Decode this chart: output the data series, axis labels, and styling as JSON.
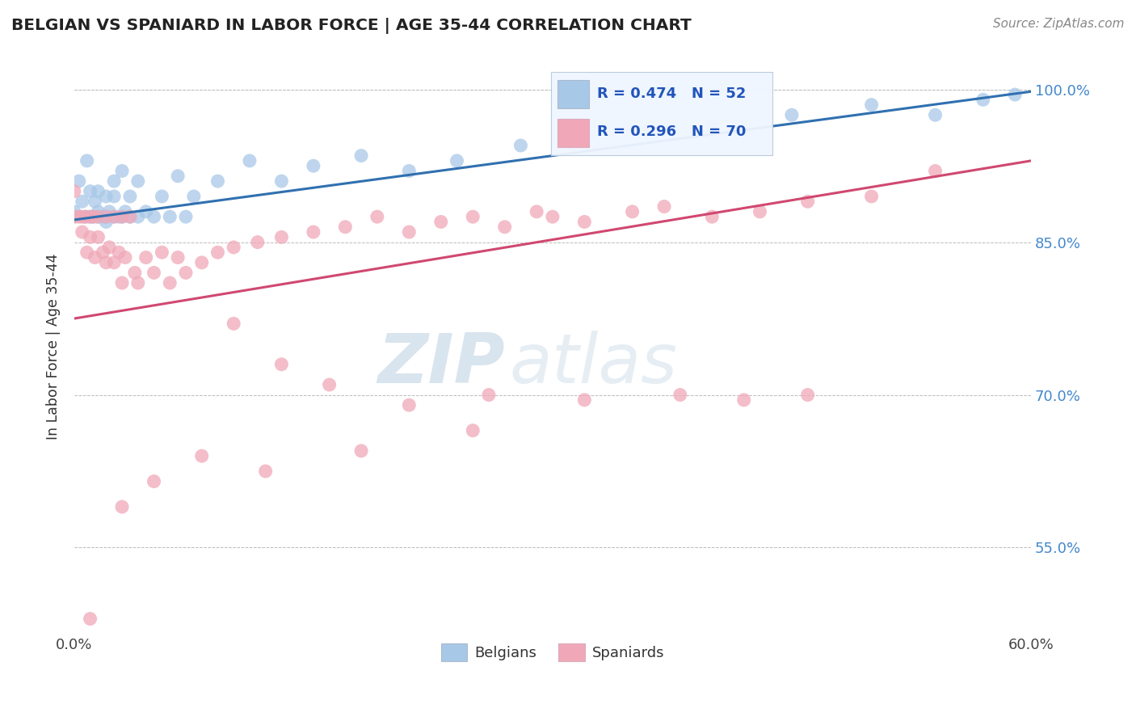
{
  "title": "BELGIAN VS SPANIARD IN LABOR FORCE | AGE 35-44 CORRELATION CHART",
  "source": "Source: ZipAtlas.com",
  "ylabel": "In Labor Force | Age 35-44",
  "xlim": [
    0.0,
    0.6
  ],
  "ylim": [
    0.465,
    1.03
  ],
  "yticks": [
    0.55,
    0.7,
    0.85,
    1.0
  ],
  "ytick_labels": [
    "55.0%",
    "70.0%",
    "85.0%",
    "100.0%"
  ],
  "xtick_labels": [
    "0.0%",
    "60.0%"
  ],
  "xticks": [
    0.0,
    0.6
  ],
  "r_belgian": 0.474,
  "n_belgian": 52,
  "r_spaniard": 0.296,
  "n_spaniard": 70,
  "belgian_color": "#a8c8e8",
  "spaniard_color": "#f0a8b8",
  "trendline_belgian_color": "#3070b0",
  "trendline_spaniard_color": "#d04870",
  "background_color": "#ffffff",
  "grid_color": "#bbbbbb",
  "watermark_zip": "ZIP",
  "watermark_atlas": "atlas",
  "belgian_trend_x0": 0.0,
  "belgian_trend_y0": 0.872,
  "belgian_trend_x1": 0.6,
  "belgian_trend_y1": 0.998,
  "spaniard_trend_x0": 0.0,
  "spaniard_trend_y0": 0.775,
  "spaniard_trend_x1": 0.6,
  "spaniard_trend_y1": 0.93,
  "belgians_x": [
    0.0,
    0.0,
    0.003,
    0.005,
    0.007,
    0.008,
    0.01,
    0.01,
    0.012,
    0.013,
    0.015,
    0.015,
    0.015,
    0.018,
    0.02,
    0.02,
    0.02,
    0.022,
    0.025,
    0.025,
    0.025,
    0.028,
    0.03,
    0.03,
    0.032,
    0.035,
    0.035,
    0.04,
    0.04,
    0.045,
    0.05,
    0.055,
    0.06,
    0.065,
    0.07,
    0.075,
    0.09,
    0.11,
    0.13,
    0.15,
    0.18,
    0.21,
    0.24,
    0.28,
    0.32,
    0.36,
    0.4,
    0.45,
    0.5,
    0.54,
    0.57,
    0.59
  ],
  "belgians_y": [
    0.875,
    0.88,
    0.91,
    0.89,
    0.875,
    0.93,
    0.875,
    0.9,
    0.875,
    0.89,
    0.875,
    0.88,
    0.9,
    0.875,
    0.875,
    0.87,
    0.895,
    0.88,
    0.875,
    0.895,
    0.91,
    0.875,
    0.875,
    0.92,
    0.88,
    0.875,
    0.895,
    0.875,
    0.91,
    0.88,
    0.875,
    0.895,
    0.875,
    0.915,
    0.875,
    0.895,
    0.91,
    0.93,
    0.91,
    0.925,
    0.935,
    0.92,
    0.93,
    0.945,
    0.955,
    0.96,
    0.965,
    0.975,
    0.985,
    0.975,
    0.99,
    0.995
  ],
  "spaniards_x": [
    0.0,
    0.0,
    0.003,
    0.005,
    0.005,
    0.007,
    0.008,
    0.01,
    0.01,
    0.012,
    0.013,
    0.015,
    0.015,
    0.018,
    0.02,
    0.02,
    0.022,
    0.025,
    0.025,
    0.028,
    0.03,
    0.03,
    0.032,
    0.035,
    0.038,
    0.04,
    0.045,
    0.05,
    0.055,
    0.06,
    0.065,
    0.07,
    0.08,
    0.09,
    0.1,
    0.115,
    0.13,
    0.15,
    0.17,
    0.19,
    0.21,
    0.23,
    0.25,
    0.27,
    0.29,
    0.3,
    0.32,
    0.35,
    0.37,
    0.4,
    0.43,
    0.46,
    0.5,
    0.54,
    0.1,
    0.13,
    0.16,
    0.21,
    0.26,
    0.32,
    0.38,
    0.42,
    0.46,
    0.25,
    0.18,
    0.12,
    0.08,
    0.05,
    0.03,
    0.01
  ],
  "spaniards_y": [
    0.875,
    0.9,
    0.875,
    0.875,
    0.86,
    0.875,
    0.84,
    0.875,
    0.855,
    0.875,
    0.835,
    0.875,
    0.855,
    0.84,
    0.875,
    0.83,
    0.845,
    0.875,
    0.83,
    0.84,
    0.875,
    0.81,
    0.835,
    0.875,
    0.82,
    0.81,
    0.835,
    0.82,
    0.84,
    0.81,
    0.835,
    0.82,
    0.83,
    0.84,
    0.845,
    0.85,
    0.855,
    0.86,
    0.865,
    0.875,
    0.86,
    0.87,
    0.875,
    0.865,
    0.88,
    0.875,
    0.87,
    0.88,
    0.885,
    0.875,
    0.88,
    0.89,
    0.895,
    0.92,
    0.77,
    0.73,
    0.71,
    0.69,
    0.7,
    0.695,
    0.7,
    0.695,
    0.7,
    0.665,
    0.645,
    0.625,
    0.64,
    0.615,
    0.59,
    0.48
  ]
}
